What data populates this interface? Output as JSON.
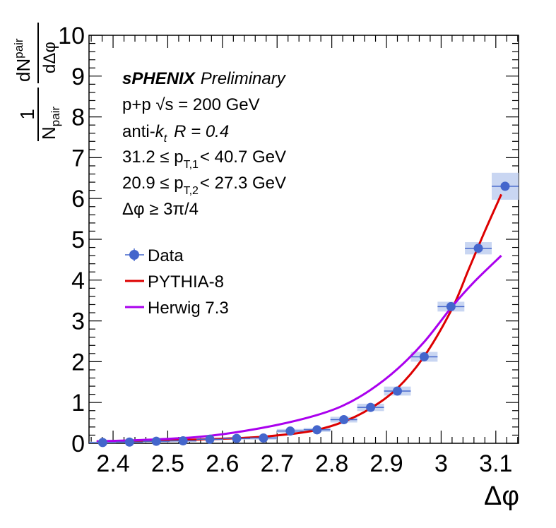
{
  "chart_data": {
    "type": "scatter",
    "xlabel": "Δφ",
    "ylabel": {
      "numerator": "dN",
      "numerator_sub": "pair",
      "numerator_denom": "dΔφ",
      "prefactor_num": "1",
      "prefactor_den": "N",
      "prefactor_den_sub": "pair"
    },
    "xlim": [
      2.356,
      3.1416
    ],
    "ylim": [
      0,
      10
    ],
    "x_ticks": [
      2.4,
      2.5,
      2.6,
      2.7,
      2.8,
      2.9,
      3.0,
      3.1
    ],
    "x_tick_labels": [
      "2.4",
      "2.5",
      "2.6",
      "2.7",
      "2.8",
      "2.9",
      "3",
      "3.1"
    ],
    "y_ticks": [
      0,
      1,
      2,
      3,
      4,
      5,
      6,
      7,
      8,
      9,
      10
    ],
    "y_tick_labels": [
      "0",
      "1",
      "2",
      "3",
      "4",
      "5",
      "6",
      "7",
      "8",
      "9",
      "10"
    ],
    "annotations": {
      "experiment": "sPHENIX",
      "status": "Preliminary",
      "system": "p+p   √s = 200 GeV",
      "algo_prefix": "anti-",
      "algo_k": "k",
      "algo_sub": "t",
      "algo_r": "R = 0.4",
      "pt1_pre": "31.2 ≤ p",
      "pt1_sub": "T,1",
      "pt1_post": "< 40.7 GeV",
      "pt2_pre": "20.9 ≤ p",
      "pt2_sub": "T,2",
      "pt2_post": "< 27.3 GeV",
      "dphi_cut": "Δφ  ≥ 3π/4"
    },
    "legend": {
      "placement": "left",
      "entries": [
        "Data",
        "PYTHIA-8",
        "Herwig 7.3"
      ]
    },
    "series": [
      {
        "name": "Data",
        "color": "#4466cc",
        "x": [
          2.381,
          2.43,
          2.479,
          2.528,
          2.577,
          2.626,
          2.675,
          2.724,
          2.773,
          2.822,
          2.871,
          2.92,
          2.969,
          3.018,
          3.068,
          3.117
        ],
        "y": [
          0.02,
          0.03,
          0.05,
          0.06,
          0.1,
          0.12,
          0.13,
          0.3,
          0.33,
          0.58,
          0.88,
          1.28,
          2.12,
          3.35,
          4.78,
          6.3
        ],
        "syst": [
          0.02,
          0.02,
          0.03,
          0.03,
          0.03,
          0.03,
          0.04,
          0.05,
          0.05,
          0.07,
          0.09,
          0.11,
          0.12,
          0.12,
          0.15,
          0.33
        ]
      },
      {
        "name": "PYTHIA-8",
        "color": "#dd0000",
        "x": [
          2.37,
          2.45,
          2.55,
          2.65,
          2.72,
          2.77,
          2.82,
          2.87,
          2.92,
          2.97,
          3.02,
          3.05,
          3.08,
          3.11
        ],
        "y": [
          0.04,
          0.06,
          0.09,
          0.14,
          0.22,
          0.32,
          0.52,
          0.85,
          1.35,
          2.15,
          3.3,
          4.25,
          5.2,
          6.1
        ]
      },
      {
        "name": "Herwig 7.3",
        "color": "#aa00ee",
        "x": [
          2.37,
          2.45,
          2.55,
          2.62,
          2.7,
          2.77,
          2.82,
          2.87,
          2.92,
          2.97,
          3.02,
          3.06,
          3.11
        ],
        "y": [
          0.05,
          0.08,
          0.15,
          0.26,
          0.45,
          0.68,
          0.92,
          1.3,
          1.82,
          2.5,
          3.35,
          3.95,
          4.6
        ]
      }
    ]
  }
}
